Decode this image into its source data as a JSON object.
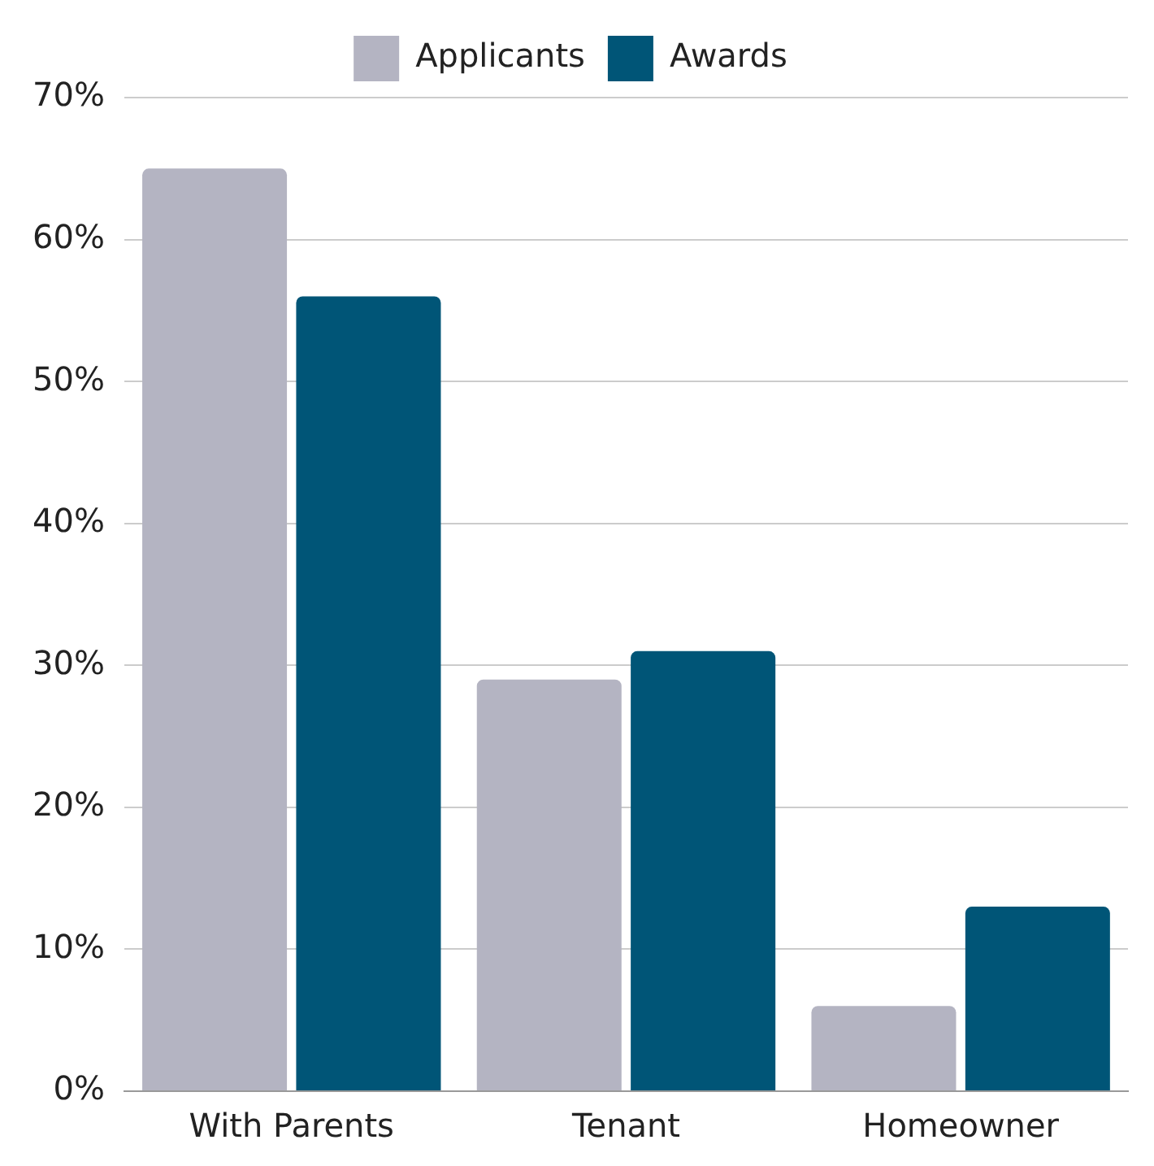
{
  "chart_data": {
    "type": "bar",
    "categories": [
      "With Parents",
      "Tenant",
      "Homeowner"
    ],
    "series": [
      {
        "name": "Applicants",
        "color": "#b4b4c2",
        "values": [
          65,
          29,
          6
        ]
      },
      {
        "name": "Awards",
        "color": "#005577",
        "values": [
          56,
          31,
          13
        ]
      }
    ],
    "ylim": [
      0,
      70
    ],
    "yticks": [
      {
        "value": 0,
        "label": "0%"
      },
      {
        "value": 10,
        "label": "10%"
      },
      {
        "value": 20,
        "label": "20%"
      },
      {
        "value": 30,
        "label": "30%"
      },
      {
        "value": 40,
        "label": "40%"
      },
      {
        "value": 50,
        "label": "50%"
      },
      {
        "value": 60,
        "label": "60%"
      },
      {
        "value": 70,
        "label": "70%"
      }
    ],
    "grid": "y",
    "legend": "top"
  }
}
